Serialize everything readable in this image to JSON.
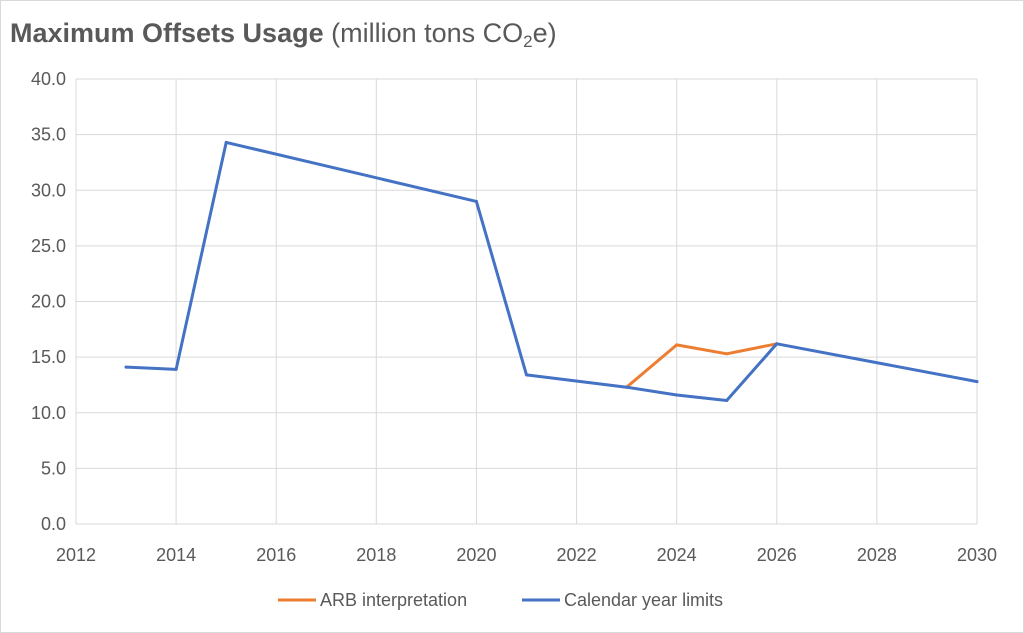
{
  "chart_data": {
    "type": "line",
    "title": "Maximum Offsets Usage",
    "title_unit_prefix": "(million tons CO",
    "title_unit_sub": "2",
    "title_unit_suffix": "e)",
    "xlim": [
      2012,
      2030
    ],
    "ylim": [
      0,
      40
    ],
    "x_ticks": [
      "2012",
      "2014",
      "2016",
      "2018",
      "2020",
      "2022",
      "2024",
      "2026",
      "2028",
      "2030"
    ],
    "y_ticks": [
      "0.0",
      "5.0",
      "10.0",
      "15.0",
      "20.0",
      "25.0",
      "30.0",
      "35.0",
      "40.0"
    ],
    "grid": true,
    "legend_position": "bottom",
    "series": [
      {
        "name": "ARB interpretation",
        "color": "#ED7D31",
        "x": [
          2023,
          2024,
          2025,
          2026
        ],
        "values": [
          12.3,
          16.1,
          15.3,
          16.2
        ]
      },
      {
        "name": "Calendar year limits",
        "color": "#4472C4",
        "x": [
          2013,
          2014,
          2015,
          2020,
          2021,
          2023,
          2024,
          2025,
          2026,
          2030
        ],
        "values": [
          14.1,
          13.9,
          34.3,
          29.0,
          13.4,
          12.3,
          11.6,
          11.1,
          16.2,
          12.8
        ]
      }
    ]
  }
}
